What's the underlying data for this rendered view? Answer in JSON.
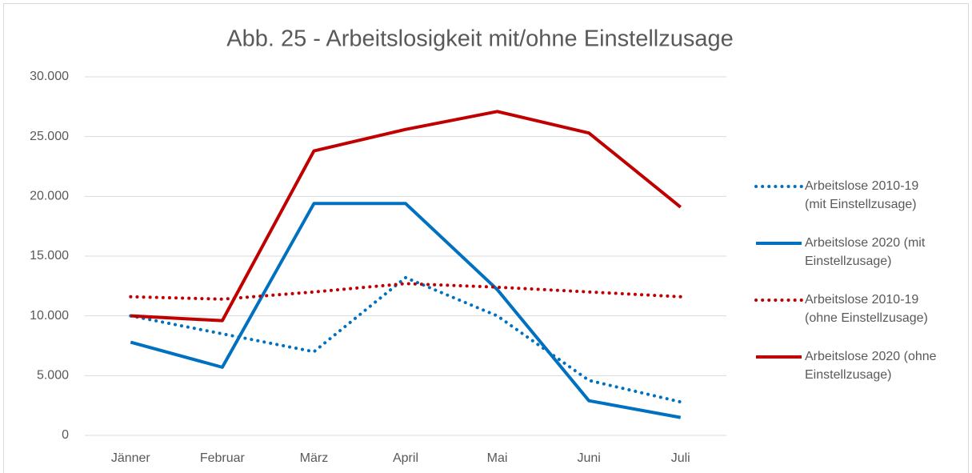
{
  "chart_data": {
    "type": "line",
    "title": "Abb. 25 - Arbeitslosigkeit mit/ohne Einstellzusage",
    "categories": [
      "Jänner",
      "Februar",
      "März",
      "April",
      "Mai",
      "Juni",
      "Juli"
    ],
    "series": [
      {
        "name": "Arbeitslose 2010-19 (mit Einstellzusage)",
        "color": "#0070c0",
        "dash": "dotted",
        "values": [
          10000,
          8500,
          7000,
          13200,
          10000,
          4600,
          2800
        ]
      },
      {
        "name": "Arbeitslose 2020 (mit Einstellzusage)",
        "color": "#0070c0",
        "dash": "solid",
        "values": [
          7800,
          5700,
          19400,
          19400,
          12200,
          2900,
          1500
        ]
      },
      {
        "name": "Arbeitslose 2010-19 (ohne Einstellzusage)",
        "color": "#c00000",
        "dash": "dotted",
        "values": [
          11600,
          11400,
          12000,
          12700,
          12400,
          12000,
          11600
        ]
      },
      {
        "name": "Arbeitslose 2020 (ohne Einstellzusage)",
        "color": "#c00000",
        "dash": "solid",
        "values": [
          10000,
          9600,
          23800,
          25600,
          27100,
          25300,
          19100
        ]
      }
    ],
    "ylim": [
      0,
      30000
    ],
    "yticks": [
      0,
      {
        "value": 5000,
        "label": "5.000"
      },
      {
        "value": 10000,
        "label": "10.000"
      },
      {
        "value": 15000,
        "label": "15.000"
      },
      {
        "value": 20000,
        "label": "20.000"
      },
      {
        "value": 25000,
        "label": "25.000"
      },
      {
        "value": 30000,
        "label": "30.000"
      }
    ],
    "grid": true,
    "legend": "right"
  }
}
